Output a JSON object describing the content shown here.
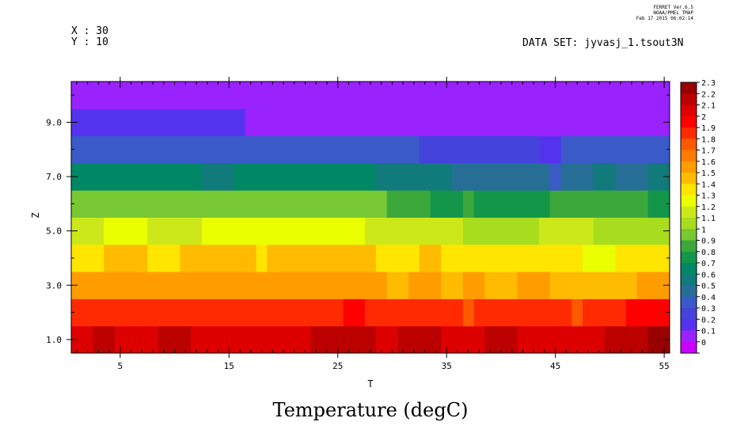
{
  "header": {
    "x_info": "X : 30",
    "y_info": "Y : 10",
    "dataset": "DATA SET: jyvasj_1.tsout3N",
    "ferret_line1": "FERRET Ver.6.5",
    "ferret_line2": "NOAA/PMEL TMAP",
    "ferret_line3": "Feb 17 2015 06:02:14"
  },
  "chart_data": {
    "type": "heatmap",
    "title": "Temperature (degC)",
    "xlabel": "T",
    "ylabel": "Z",
    "xlim": [
      0.5,
      55.5
    ],
    "ylim": [
      0.5,
      10.5
    ],
    "x_ticks": [
      5,
      15,
      25,
      35,
      45,
      55
    ],
    "x_tick_labels": [
      "5",
      "15",
      "25",
      "35",
      "45",
      "55"
    ],
    "y_ticks": [
      1,
      3,
      5,
      7,
      9
    ],
    "y_tick_labels": [
      "1.0",
      "3.0",
      "5.0",
      "7.0",
      "9.0"
    ],
    "colorbar": {
      "levels": [
        "2.3",
        "2.2",
        "2.1",
        "2",
        "1.9",
        "1.8",
        "1.7",
        "1.6",
        "1.5",
        "1.4",
        "1.3",
        "1.2",
        "1.1",
        "1",
        "0.9",
        "0.8",
        "0.7",
        "0.6",
        "0.5",
        "0.4",
        "0.3",
        "0.2",
        "0.1",
        "0"
      ],
      "colors": [
        "#990000",
        "#bb0000",
        "#dd0000",
        "#ff0000",
        "#ff2a00",
        "#ff5a00",
        "#ff7a00",
        "#ff9c00",
        "#ffbb00",
        "#ffe500",
        "#eaff00",
        "#cce81a",
        "#a8dc1e",
        "#77c832",
        "#3ca83c",
        "#14964a",
        "#008866",
        "#117a7a",
        "#276e96",
        "#3a5ac8",
        "#4444dd",
        "#5533ee",
        "#9922ff",
        "#cc00ff"
      ]
    },
    "rows": [
      {
        "z": 1,
        "runs": [
          [
            1,
            2,
            2.05
          ],
          [
            3,
            4,
            2.15
          ],
          [
            5,
            8,
            2.05
          ],
          [
            9,
            11,
            2.15
          ],
          [
            12,
            22,
            2.05
          ],
          [
            23,
            28,
            2.15
          ],
          [
            29,
            30,
            2.05
          ],
          [
            31,
            34,
            2.15
          ],
          [
            35,
            38,
            2.05
          ],
          [
            39,
            41,
            2.15
          ],
          [
            42,
            49,
            2.05
          ],
          [
            50,
            53,
            2.15
          ],
          [
            54,
            55,
            2.25
          ]
        ]
      },
      {
        "z": 2,
        "runs": [
          [
            1,
            25,
            1.85
          ],
          [
            26,
            27,
            1.95
          ],
          [
            28,
            36,
            1.85
          ],
          [
            37,
            37,
            1.75
          ],
          [
            38,
            46,
            1.85
          ],
          [
            47,
            47,
            1.75
          ],
          [
            48,
            51,
            1.85
          ],
          [
            52,
            55,
            1.95
          ]
        ]
      },
      {
        "z": 3,
        "runs": [
          [
            1,
            29,
            1.55
          ],
          [
            30,
            31,
            1.45
          ],
          [
            32,
            34,
            1.55
          ],
          [
            35,
            36,
            1.45
          ],
          [
            37,
            38,
            1.55
          ],
          [
            39,
            41,
            1.45
          ],
          [
            42,
            44,
            1.55
          ],
          [
            45,
            52,
            1.45
          ],
          [
            53,
            55,
            1.55
          ]
        ]
      },
      {
        "z": 4,
        "runs": [
          [
            1,
            3,
            1.35
          ],
          [
            4,
            7,
            1.45
          ],
          [
            8,
            10,
            1.35
          ],
          [
            11,
            17,
            1.45
          ],
          [
            18,
            18,
            1.35
          ],
          [
            19,
            28,
            1.45
          ],
          [
            29,
            32,
            1.35
          ],
          [
            33,
            34,
            1.45
          ],
          [
            35,
            47,
            1.35
          ],
          [
            48,
            50,
            1.25
          ],
          [
            51,
            55,
            1.35
          ]
        ]
      },
      {
        "z": 5,
        "runs": [
          [
            1,
            3,
            1.15
          ],
          [
            4,
            7,
            1.25
          ],
          [
            8,
            12,
            1.15
          ],
          [
            13,
            27,
            1.25
          ],
          [
            28,
            36,
            1.15
          ],
          [
            37,
            43,
            1.05
          ],
          [
            44,
            48,
            1.15
          ],
          [
            49,
            55,
            1.05
          ]
        ]
      },
      {
        "z": 6,
        "runs": [
          [
            1,
            29,
            0.95
          ],
          [
            30,
            33,
            0.85
          ],
          [
            34,
            36,
            0.75
          ],
          [
            37,
            37,
            0.85
          ],
          [
            38,
            44,
            0.75
          ],
          [
            45,
            53,
            0.85
          ],
          [
            54,
            55,
            0.75
          ]
        ]
      },
      {
        "z": 7,
        "runs": [
          [
            1,
            12,
            0.65
          ],
          [
            13,
            15,
            0.55
          ],
          [
            16,
            28,
            0.65
          ],
          [
            29,
            35,
            0.55
          ],
          [
            36,
            44,
            0.45
          ],
          [
            45,
            45,
            0.35
          ],
          [
            46,
            48,
            0.45
          ],
          [
            49,
            50,
            0.55
          ],
          [
            51,
            53,
            0.45
          ],
          [
            54,
            55,
            0.55
          ]
        ]
      },
      {
        "z": 8,
        "runs": [
          [
            1,
            32,
            0.35
          ],
          [
            33,
            43,
            0.25
          ],
          [
            44,
            45,
            0.15
          ],
          [
            46,
            55,
            0.35
          ]
        ]
      },
      {
        "z": 9,
        "runs": [
          [
            1,
            16,
            0.15
          ],
          [
            17,
            55,
            0.05
          ]
        ]
      },
      {
        "z": 10,
        "runs": [
          [
            1,
            55,
            0.05
          ]
        ]
      }
    ]
  }
}
